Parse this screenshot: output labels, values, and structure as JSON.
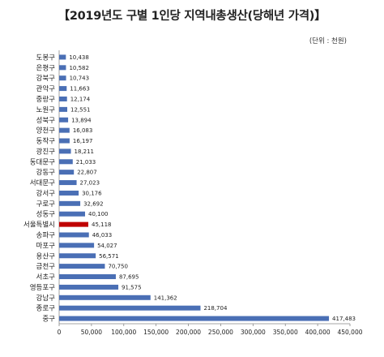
{
  "chart_data": {
    "type": "bar",
    "orientation": "horizontal",
    "title": "【2019년도 구별 1인당 지역내총생산(당해년 가격)】",
    "unit": "(단위 : 천원)",
    "categories": [
      "도봉구",
      "은평구",
      "강북구",
      "관악구",
      "중랑구",
      "노원구",
      "성북구",
      "양천구",
      "동작구",
      "광진구",
      "동대문구",
      "강동구",
      "서대문구",
      "강서구",
      "구로구",
      "성동구",
      "서울특별시",
      "송파구",
      "마포구",
      "용산구",
      "금천구",
      "서초구",
      "영등포구",
      "강남구",
      "종로구",
      "중구"
    ],
    "values": [
      10438,
      10582,
      10743,
      11663,
      12174,
      12551,
      13894,
      16083,
      16197,
      18211,
      21033,
      22807,
      27023,
      30176,
      32692,
      40100,
      45118,
      46033,
      54027,
      56571,
      70750,
      87695,
      91575,
      141362,
      218704,
      417483
    ],
    "value_labels": [
      "10,438",
      "10,582",
      "10,743",
      "11,663",
      "12,174",
      "12,551",
      "13,894",
      "16,083",
      "16,197",
      "18,211",
      "21,033",
      "22,807",
      "27,023",
      "30,176",
      "32,692",
      "40,100",
      "45,118",
      "46,033",
      "54,027",
      "56,571",
      "70,750",
      "87,695",
      "91,575",
      "141,362",
      "218,704",
      "417,483"
    ],
    "highlight_category": "서울특별시",
    "xlim": [
      0,
      450000
    ],
    "x_ticks": [
      0,
      50000,
      100000,
      150000,
      200000,
      250000,
      300000,
      350000,
      400000,
      450000
    ],
    "x_tick_labels": [
      "0",
      "50,000",
      "100,000",
      "150,000",
      "200,000",
      "250,000",
      "300,000",
      "350,000",
      "400,000",
      "450,000"
    ],
    "grid": false,
    "legend": "none",
    "colors": {
      "bar": "#4a6fb5",
      "highlight": "#c00000",
      "axis": "#888888"
    }
  }
}
